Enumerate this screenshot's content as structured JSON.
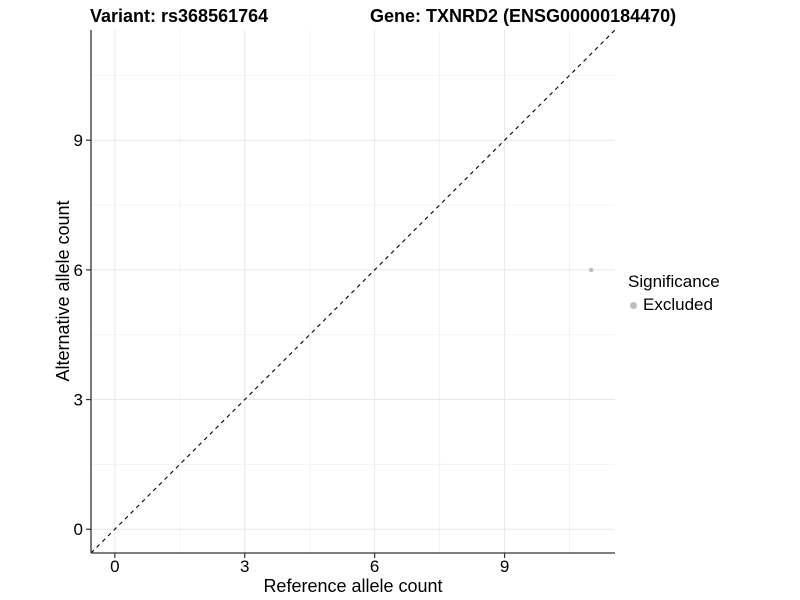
{
  "titles": {
    "variant": "Variant: rs368561764",
    "gene": "Gene: TXNRD2 (ENSG00000184470)"
  },
  "chart_data": {
    "type": "scatter",
    "title": "Variant: rs368561764   Gene: TXNRD2 (ENSG00000184470)",
    "xlabel": "Reference allele count",
    "ylabel": "Alternative allele count",
    "xlim": [
      -0.55,
      11.55
    ],
    "ylim": [
      -0.55,
      11.55
    ],
    "x_ticks": [
      0,
      3,
      6,
      9
    ],
    "y_ticks": [
      0,
      3,
      6,
      9
    ],
    "minor_ticks": [
      1.5,
      4.5,
      7.5,
      10.5
    ],
    "grid": "on",
    "grid_major_color": "#e8e8e8",
    "grid_minor_color": "#f3f3f3",
    "axis_line_color": "#333333",
    "text_color": "#000000",
    "reference_line": {
      "kind": "abline",
      "slope": 1,
      "intercept": 0,
      "style": "dashed",
      "color": "#000000"
    },
    "series": [
      {
        "name": "Excluded",
        "color": "#bcbcbc",
        "point_radius": 2.2,
        "points": [
          {
            "x": 11,
            "y": 6
          }
        ]
      }
    ],
    "legend": {
      "title": "Significance",
      "position": "right",
      "entries": [
        {
          "label": "Excluded",
          "color": "#bcbcbc"
        }
      ]
    }
  }
}
